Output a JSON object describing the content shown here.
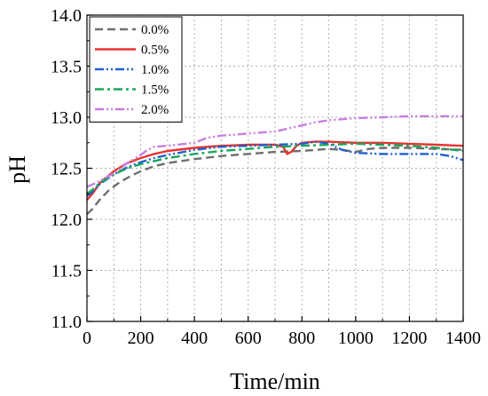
{
  "chart_data": {
    "type": "line",
    "xlabel": "Time/min",
    "ylabel": "pH",
    "xlim": [
      0,
      1400
    ],
    "ylim": [
      11.0,
      14.0
    ],
    "xticks": [
      0,
      200,
      400,
      600,
      800,
      1000,
      1200,
      1400
    ],
    "yticks": [
      11.0,
      11.5,
      12.0,
      12.5,
      13.0,
      13.5,
      14.0
    ],
    "grid": true,
    "legend_position": "top-left",
    "series": [
      {
        "name": "0.0%",
        "color": "#6e6e6e",
        "dash": "dashed",
        "x": [
          0,
          20,
          50,
          80,
          120,
          160,
          200,
          250,
          300,
          350,
          400,
          500,
          600,
          700,
          800,
          900,
          950,
          1000,
          1050,
          1100,
          1200,
          1300,
          1400
        ],
        "y": [
          12.05,
          12.1,
          12.2,
          12.28,
          12.36,
          12.42,
          12.47,
          12.52,
          12.55,
          12.57,
          12.59,
          12.62,
          12.64,
          12.66,
          12.67,
          12.69,
          12.68,
          12.66,
          12.69,
          12.7,
          12.7,
          12.69,
          12.68
        ]
      },
      {
        "name": "0.5%",
        "color": "#e8332f",
        "dash": "solid",
        "x": [
          0,
          20,
          50,
          100,
          150,
          200,
          250,
          300,
          400,
          500,
          600,
          700,
          730,
          745,
          760,
          780,
          800,
          850,
          900,
          1000,
          1100,
          1200,
          1300,
          1400
        ],
        "y": [
          12.19,
          12.25,
          12.36,
          12.47,
          12.55,
          12.6,
          12.64,
          12.67,
          12.7,
          12.72,
          12.73,
          12.73,
          12.71,
          12.64,
          12.66,
          12.72,
          12.75,
          12.76,
          12.76,
          12.75,
          12.75,
          12.74,
          12.73,
          12.72
        ]
      },
      {
        "name": "1.0%",
        "color": "#1f5fd1",
        "dash": "dashdotdot",
        "x": [
          0,
          20,
          50,
          100,
          150,
          200,
          250,
          300,
          400,
          500,
          600,
          700,
          800,
          850,
          900,
          950,
          1000,
          1100,
          1200,
          1300,
          1350,
          1400
        ],
        "y": [
          12.23,
          12.27,
          12.35,
          12.44,
          12.51,
          12.56,
          12.6,
          12.63,
          12.68,
          12.71,
          12.72,
          12.73,
          12.74,
          12.76,
          12.74,
          12.68,
          12.65,
          12.64,
          12.64,
          12.64,
          12.62,
          12.58
        ]
      },
      {
        "name": "1.5%",
        "color": "#1aa55c",
        "dash": "dashdot",
        "x": [
          0,
          20,
          50,
          100,
          150,
          200,
          250,
          300,
          400,
          500,
          600,
          700,
          800,
          900,
          1000,
          1100,
          1200,
          1300,
          1400
        ],
        "y": [
          12.25,
          12.29,
          12.36,
          12.44,
          12.5,
          12.54,
          12.57,
          12.6,
          12.64,
          12.67,
          12.69,
          12.71,
          12.72,
          12.73,
          12.74,
          12.73,
          12.72,
          12.7,
          12.67
        ]
      },
      {
        "name": "2.0%",
        "color": "#c77ee0",
        "dash": "dashdotdot",
        "x": [
          0,
          20,
          50,
          100,
          150,
          200,
          220,
          250,
          300,
          400,
          450,
          500,
          600,
          700,
          800,
          850,
          900,
          1000,
          1100,
          1200,
          1300,
          1400
        ],
        "y": [
          12.32,
          12.34,
          12.38,
          12.45,
          12.55,
          12.63,
          12.67,
          12.71,
          12.72,
          12.75,
          12.8,
          12.82,
          12.84,
          12.86,
          12.92,
          12.95,
          12.97,
          12.99,
          13.0,
          13.01,
          13.01,
          13.01
        ]
      }
    ]
  }
}
